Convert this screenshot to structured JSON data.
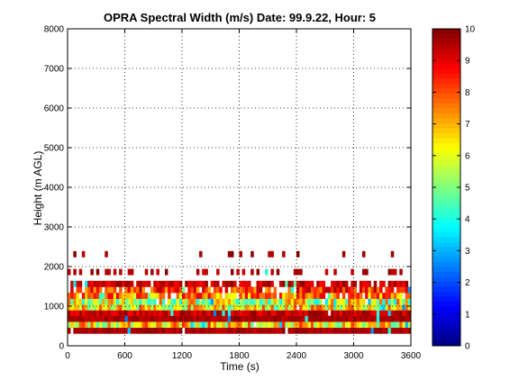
{
  "chart_data": {
    "type": "heatmap",
    "title": "OPRA Spectral Width (m/s)  Date: 99.9.22, Hour: 5",
    "xlabel": "Time (s)",
    "ylabel": "Height (m AGL)",
    "xlim": [
      0,
      3600
    ],
    "ylim": [
      0,
      8000
    ],
    "xticks": [
      0,
      600,
      1200,
      1800,
      2400,
      3000,
      3600
    ],
    "yticks": [
      0,
      1000,
      2000,
      3000,
      4000,
      5000,
      6000,
      7000,
      8000
    ],
    "grid": true,
    "colorbar": {
      "range": [
        0,
        10
      ],
      "ticks": [
        0,
        1,
        2,
        3,
        4,
        5,
        6,
        7,
        8,
        9,
        10
      ],
      "colormap": "jet"
    },
    "layers": [
      {
        "y0": 310,
        "y1": 460,
        "typical": 9.6,
        "coverage": 0.99,
        "var": 0.3
      },
      {
        "y0": 460,
        "y1": 610,
        "typical": 6.5,
        "coverage": 0.97,
        "var": 2.0
      },
      {
        "y0": 610,
        "y1": 760,
        "typical": 9.6,
        "coverage": 0.99,
        "var": 0.3
      },
      {
        "y0": 760,
        "y1": 900,
        "typical": 9.3,
        "coverage": 0.98,
        "var": 0.6
      },
      {
        "y0": 900,
        "y1": 1040,
        "typical": 6.4,
        "coverage": 0.97,
        "var": 1.8
      },
      {
        "y0": 1040,
        "y1": 1190,
        "typical": 5.8,
        "coverage": 0.96,
        "var": 2.2
      },
      {
        "y0": 1190,
        "y1": 1340,
        "typical": 7.4,
        "coverage": 0.93,
        "var": 1.6
      },
      {
        "y0": 1340,
        "y1": 1490,
        "typical": 8.3,
        "coverage": 0.86,
        "var": 1.3
      },
      {
        "y0": 1490,
        "y1": 1640,
        "typical": 9.3,
        "coverage": 0.82,
        "var": 0.6
      },
      {
        "y0": 1790,
        "y1": 1940,
        "typical": 9.6,
        "coverage": 0.33,
        "var": 0.4
      },
      {
        "y0": 2240,
        "y1": 2390,
        "typical": 9.7,
        "coverage": 0.12,
        "var": 0.3
      }
    ]
  }
}
